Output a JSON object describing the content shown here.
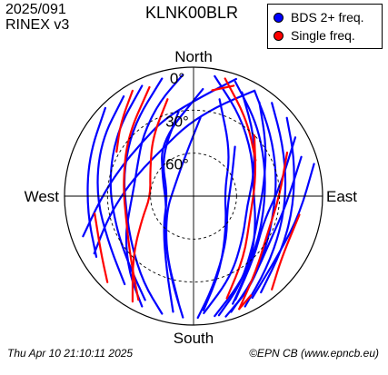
{
  "header": {
    "date": "2025/091",
    "format": "RINEX v3",
    "station": "KLNK00BLR"
  },
  "legend": [
    {
      "label": "BDS 2+ freq.",
      "color": "#0000ff"
    },
    {
      "label": "Single freq.",
      "color": "#ff0000"
    }
  ],
  "footer": {
    "timestamp": "Thu Apr 10 21:10:11 2025",
    "credit": "©EPN CB (www.epncb.eu)"
  },
  "chart_data": {
    "type": "polar-skyplot",
    "directions": {
      "north": "North",
      "south": "South",
      "east": "East",
      "west": "West"
    },
    "elevation_ticks": [
      "0°",
      "30°",
      "60°"
    ],
    "series": [
      {
        "name": "BDS 2+ freq.",
        "color": "#0000ff",
        "tracks": [
          [
            [
              355,
              5
            ],
            [
              340,
              20
            ],
            [
              320,
              35
            ],
            [
              300,
              45
            ],
            [
              280,
              48
            ],
            [
              260,
              45
            ],
            [
              240,
              35
            ],
            [
              220,
              20
            ],
            [
              205,
              5
            ]
          ],
          [
            [
              10,
              5
            ],
            [
              30,
              25
            ],
            [
              55,
              40
            ],
            [
              85,
              48
            ],
            [
              115,
              42
            ],
            [
              140,
              28
            ],
            [
              160,
              10
            ]
          ],
          [
            [
              20,
              5
            ],
            [
              40,
              22
            ],
            [
              65,
              35
            ],
            [
              95,
              40
            ],
            [
              125,
              35
            ],
            [
              150,
              22
            ],
            [
              170,
              5
            ]
          ],
          [
            [
              30,
              5
            ],
            [
              50,
              20
            ],
            [
              75,
              30
            ],
            [
              100,
              33
            ],
            [
              125,
              28
            ],
            [
              148,
              15
            ],
            [
              165,
              3
            ]
          ],
          [
            [
              40,
              5
            ],
            [
              60,
              18
            ],
            [
              85,
              25
            ],
            [
              110,
              25
            ],
            [
              135,
              18
            ],
            [
              155,
              5
            ]
          ],
          [
            [
              50,
              5
            ],
            [
              70,
              15
            ],
            [
              95,
              20
            ],
            [
              120,
              18
            ],
            [
              145,
              8
            ]
          ],
          [
            [
              25,
              10
            ],
            [
              45,
              30
            ],
            [
              70,
              45
            ],
            [
              100,
              52
            ],
            [
              130,
              45
            ],
            [
              155,
              28
            ],
            [
              175,
              8
            ]
          ],
          [
            [
              35,
              10
            ],
            [
              55,
              28
            ],
            [
              80,
              40
            ],
            [
              105,
              43
            ],
            [
              130,
              36
            ],
            [
              152,
              20
            ],
            [
              168,
              5
            ]
          ],
          [
            [
              345,
              5
            ],
            [
              320,
              25
            ],
            [
              290,
              38
            ],
            [
              260,
              42
            ],
            [
              232,
              35
            ],
            [
              210,
              20
            ],
            [
              195,
              5
            ]
          ],
          [
            [
              335,
              5
            ],
            [
              310,
              20
            ],
            [
              280,
              30
            ],
            [
              250,
              32
            ],
            [
              225,
              25
            ],
            [
              205,
              10
            ]
          ],
          [
            [
              325,
              5
            ],
            [
              300,
              15
            ],
            [
              270,
              22
            ],
            [
              240,
              22
            ],
            [
              218,
              12
            ]
          ],
          [
            [
              315,
              3
            ],
            [
              290,
              12
            ],
            [
              262,
              15
            ],
            [
              238,
              10
            ]
          ],
          [
            [
              5,
              15
            ],
            [
              330,
              45
            ],
            [
              300,
              65
            ],
            [
              250,
              70
            ],
            [
              215,
              55
            ],
            [
              195,
              30
            ],
            [
              185,
              5
            ]
          ],
          [
            [
              350,
              30
            ],
            [
              320,
              55
            ],
            [
              270,
              72
            ],
            [
              225,
              60
            ],
            [
              200,
              35
            ],
            [
              190,
              8
            ]
          ],
          [
            [
              15,
              20
            ],
            [
              40,
              50
            ],
            [
              80,
              68
            ],
            [
              130,
              60
            ],
            [
              160,
              35
            ],
            [
              175,
              10
            ]
          ],
          [
            [
              60,
              8
            ],
            [
              85,
              30
            ],
            [
              110,
              38
            ],
            [
              135,
              30
            ],
            [
              158,
              12
            ]
          ],
          [
            [
              70,
              10
            ],
            [
              95,
              25
            ],
            [
              120,
              28
            ],
            [
              145,
              18
            ],
            [
              162,
              5
            ]
          ],
          [
            [
              75,
              3
            ],
            [
              100,
              15
            ],
            [
              125,
              18
            ],
            [
              150,
              8
            ]
          ],
          [
            [
              40,
              45
            ],
            [
              70,
              62
            ],
            [
              110,
              65
            ],
            [
              145,
              50
            ],
            [
              168,
              25
            ],
            [
              178,
              5
            ]
          ],
          [
            [
              5,
              35
            ],
            [
              350,
              60
            ],
            [
              300,
              75
            ],
            [
              240,
              68
            ],
            [
              205,
              45
            ],
            [
              188,
              15
            ]
          ],
          [
            [
              30,
              5
            ],
            [
              15,
              25
            ],
            [
              355,
              40
            ],
            [
              330,
              50
            ],
            [
              300,
              50
            ],
            [
              275,
              42
            ],
            [
              255,
              28
            ],
            [
              240,
              10
            ]
          ],
          [
            [
              20,
              3
            ],
            [
              5,
              20
            ],
            [
              340,
              32
            ],
            [
              315,
              38
            ],
            [
              290,
              35
            ],
            [
              268,
              25
            ],
            [
              250,
              8
            ]
          ]
        ]
      },
      {
        "name": "Single freq.",
        "color": "#ff0000",
        "tracks": [
          [
            [
              330,
              5
            ],
            [
              315,
              18
            ],
            [
              300,
              28
            ]
          ],
          [
            [
              345,
              20
            ],
            [
              325,
              40
            ],
            [
              300,
              55
            ],
            [
              270,
              60
            ],
            [
              245,
              50
            ],
            [
              225,
              30
            ],
            [
              210,
              5
            ]
          ],
          [
            [
              15,
              5
            ],
            [
              35,
              25
            ],
            [
              60,
              40
            ]
          ],
          [
            [
              65,
              18
            ],
            [
              90,
              30
            ],
            [
              118,
              32
            ],
            [
              140,
              22
            ],
            [
              158,
              5
            ]
          ],
          [
            [
              338,
              8
            ],
            [
              312,
              28
            ],
            [
              280,
              40
            ],
            [
              250,
              40
            ],
            [
              225,
              28
            ],
            [
              208,
              8
            ]
          ],
          [
            [
              100,
              15
            ],
            [
              125,
              15
            ],
            [
              140,
              5
            ]
          ],
          [
            [
              45,
              30
            ],
            [
              75,
              45
            ],
            [
              110,
              48
            ],
            [
              140,
              35
            ],
            [
              162,
              15
            ]
          ],
          [
            [
              260,
              20
            ],
            [
              240,
              15
            ],
            [
              225,
              5
            ]
          ],
          [
            [
              20,
              8
            ],
            [
              10,
              15
            ]
          ],
          [
            [
              150,
              10
            ],
            [
              158,
              5
            ]
          ]
        ]
      }
    ]
  }
}
